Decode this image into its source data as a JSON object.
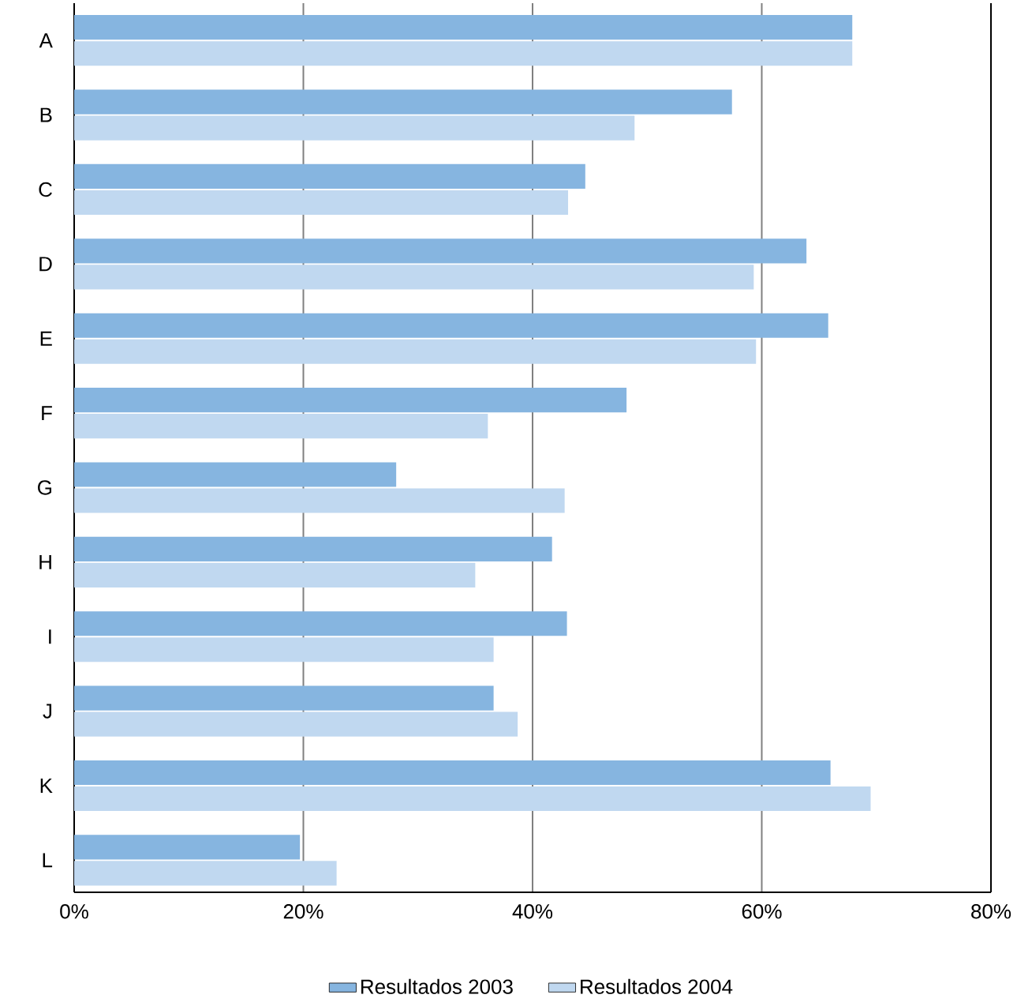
{
  "chart_data": {
    "type": "bar",
    "orientation": "horizontal",
    "categories": [
      "A",
      "B",
      "C",
      "D",
      "E",
      "F",
      "G",
      "H",
      "I",
      "J",
      "K",
      "L"
    ],
    "series": [
      {
        "name": "Resultados 2003",
        "color": "#86b5e0",
        "values": [
          67.9,
          57.4,
          44.6,
          63.9,
          65.8,
          48.2,
          28.1,
          41.7,
          43.0,
          36.6,
          66.0,
          19.7
        ]
      },
      {
        "name": "Resultados 2004",
        "color": "#c0d8f0",
        "values": [
          67.9,
          48.9,
          43.1,
          59.3,
          59.5,
          36.1,
          42.8,
          35.0,
          36.6,
          38.7,
          69.5,
          22.9
        ]
      }
    ],
    "xlim": [
      0,
      80
    ],
    "xticks": [
      {
        "value": 0,
        "label": "0%"
      },
      {
        "value": 20,
        "label": "20%"
      },
      {
        "value": 40,
        "label": "40%"
      },
      {
        "value": 60,
        "label": "60%"
      },
      {
        "value": 80,
        "label": "80%"
      }
    ],
    "grid": "x",
    "legend": "bottom"
  }
}
